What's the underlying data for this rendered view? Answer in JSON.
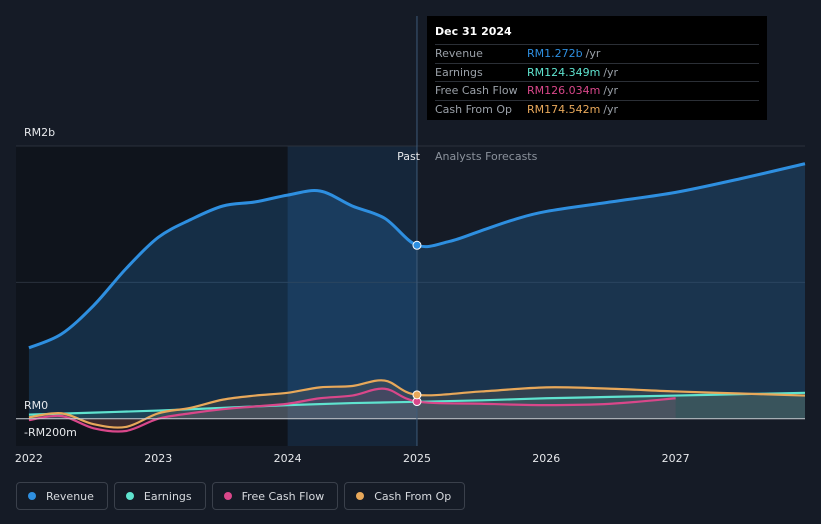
{
  "tooltip": {
    "date": "Dec 31 2024",
    "rows": [
      {
        "label": "Revenue",
        "value": "RM1.272b",
        "unit": "/yr",
        "color": "#2e8fe0"
      },
      {
        "label": "Earnings",
        "value": "RM124.349m",
        "unit": "/yr",
        "color": "#5fe3cf"
      },
      {
        "label": "Free Cash Flow",
        "value": "RM126.034m",
        "unit": "/yr",
        "color": "#d9478a"
      },
      {
        "label": "Cash From Op",
        "value": "RM174.542m",
        "unit": "/yr",
        "color": "#e8a85a"
      }
    ]
  },
  "labels": {
    "y_top": "RM2b",
    "y_zero": "RM0",
    "y_neg": "-RM200m",
    "past": "Past",
    "forecast": "Analysts Forecasts"
  },
  "legend": [
    {
      "label": "Revenue",
      "color": "#2e8fe0"
    },
    {
      "label": "Earnings",
      "color": "#5fe3cf"
    },
    {
      "label": "Free Cash Flow",
      "color": "#d9478a"
    },
    {
      "label": "Cash From Op",
      "color": "#e8a85a"
    }
  ],
  "chart_data": {
    "type": "line",
    "xlim": [
      2021.9,
      2028.0
    ],
    "ylim": [
      -200,
      2000
    ],
    "y_unit": "RM m",
    "x_ticks": [
      2022,
      2023,
      2024,
      2025,
      2026,
      2027
    ],
    "x_tick_labels": [
      "2022",
      "2023",
      "2024",
      "2025",
      "2026",
      "2027"
    ],
    "past_until": 2025.0,
    "highlight_from": 2024.0,
    "series": [
      {
        "name": "Revenue",
        "color": "#2e8fe0",
        "points": [
          [
            2022.0,
            520
          ],
          [
            2022.25,
            620
          ],
          [
            2022.5,
            830
          ],
          [
            2022.75,
            1100
          ],
          [
            2023.0,
            1330
          ],
          [
            2023.25,
            1460
          ],
          [
            2023.5,
            1560
          ],
          [
            2023.75,
            1590
          ],
          [
            2024.0,
            1640
          ],
          [
            2024.25,
            1670
          ],
          [
            2024.5,
            1560
          ],
          [
            2024.75,
            1470
          ],
          [
            2025.0,
            1272
          ],
          [
            2025.25,
            1300
          ],
          [
            2025.5,
            1380
          ],
          [
            2025.75,
            1460
          ],
          [
            2026.0,
            1520
          ],
          [
            2026.5,
            1590
          ],
          [
            2027.0,
            1660
          ],
          [
            2027.5,
            1760
          ],
          [
            2028.0,
            1870
          ]
        ]
      },
      {
        "name": "Earnings",
        "color": "#5fe3cf",
        "points": [
          [
            2022.0,
            30
          ],
          [
            2022.5,
            45
          ],
          [
            2023.0,
            60
          ],
          [
            2023.5,
            80
          ],
          [
            2024.0,
            100
          ],
          [
            2024.5,
            115
          ],
          [
            2025.0,
            124
          ],
          [
            2025.5,
            135
          ],
          [
            2026.0,
            150
          ],
          [
            2026.5,
            160
          ],
          [
            2027.0,
            170
          ],
          [
            2027.5,
            180
          ],
          [
            2028.0,
            190
          ]
        ]
      },
      {
        "name": "Free Cash Flow",
        "color": "#d9478a",
        "points": [
          [
            2022.0,
            -10
          ],
          [
            2022.25,
            20
          ],
          [
            2022.5,
            -70
          ],
          [
            2022.75,
            -90
          ],
          [
            2023.0,
            0
          ],
          [
            2023.25,
            40
          ],
          [
            2023.5,
            70
          ],
          [
            2023.75,
            90
          ],
          [
            2024.0,
            110
          ],
          [
            2024.25,
            150
          ],
          [
            2024.5,
            170
          ],
          [
            2024.75,
            220
          ],
          [
            2025.0,
            126
          ],
          [
            2025.5,
            110
          ],
          [
            2026.0,
            100
          ],
          [
            2026.5,
            110
          ],
          [
            2027.0,
            150
          ]
        ]
      },
      {
        "name": "Cash From Op",
        "color": "#e8a85a",
        "points": [
          [
            2022.0,
            10
          ],
          [
            2022.25,
            40
          ],
          [
            2022.5,
            -40
          ],
          [
            2022.75,
            -60
          ],
          [
            2023.0,
            40
          ],
          [
            2023.25,
            80
          ],
          [
            2023.5,
            140
          ],
          [
            2023.75,
            170
          ],
          [
            2024.0,
            190
          ],
          [
            2024.25,
            230
          ],
          [
            2024.5,
            240
          ],
          [
            2024.75,
            280
          ],
          [
            2025.0,
            175
          ],
          [
            2025.5,
            200
          ],
          [
            2026.0,
            230
          ],
          [
            2026.5,
            220
          ],
          [
            2027.0,
            200
          ],
          [
            2027.5,
            185
          ],
          [
            2028.0,
            170
          ]
        ]
      }
    ]
  }
}
